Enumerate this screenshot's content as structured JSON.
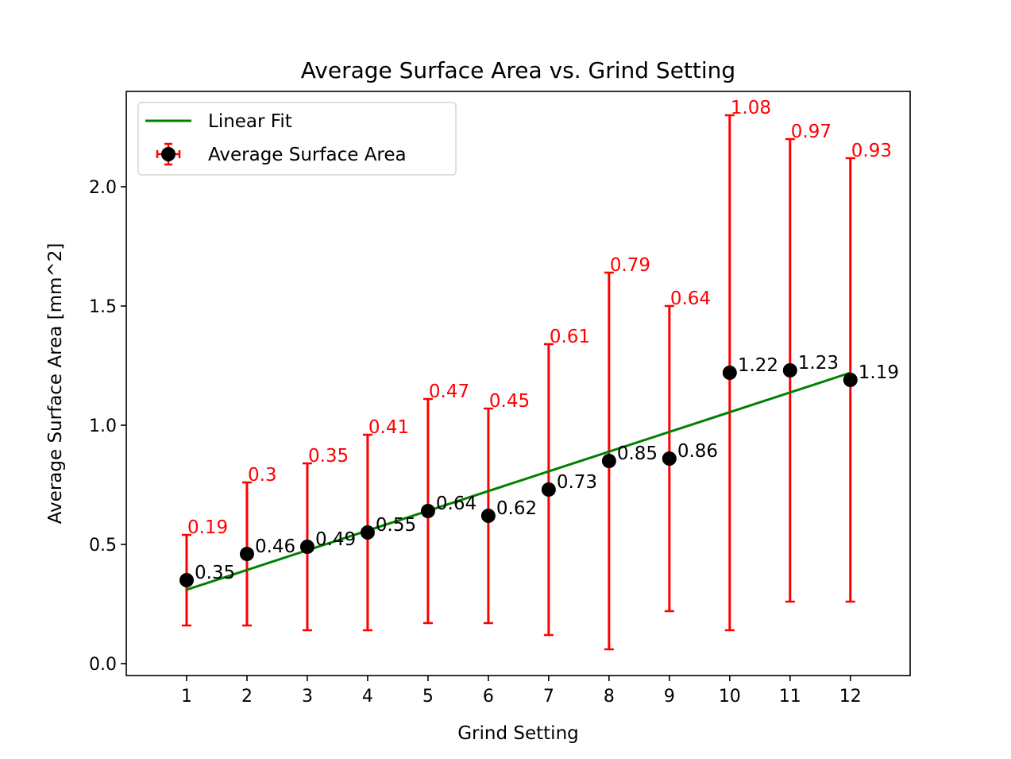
{
  "chart_data": {
    "type": "scatter",
    "title": "Average Surface Area vs. Grind Setting",
    "xlabel": "Grind Setting",
    "ylabel": "Average Surface Area [mm^2]",
    "xlim": [
      0,
      12.99
    ],
    "ylim": [
      -0.05,
      2.4
    ],
    "x_ticks": [
      1,
      2,
      3,
      4,
      5,
      6,
      7,
      8,
      9,
      10,
      11,
      12
    ],
    "y_ticks": [
      0.0,
      0.5,
      1.0,
      1.5,
      2.0
    ],
    "y_tick_labels": [
      "0.0",
      "0.5",
      "1.0",
      "1.5",
      "2.0"
    ],
    "grid": false,
    "legend_position": "top-left",
    "colors": {
      "points": "#000000",
      "errorbars": "#ff0000",
      "fit": "#008000"
    },
    "series": [
      {
        "name": "Average Surface Area",
        "kind": "errorbar",
        "x": [
          1,
          2,
          3,
          4,
          5,
          6,
          7,
          8,
          9,
          10,
          11,
          12
        ],
        "y": [
          0.35,
          0.46,
          0.49,
          0.55,
          0.64,
          0.62,
          0.73,
          0.85,
          0.86,
          1.22,
          1.23,
          1.19
        ],
        "y_labels": [
          "0.35",
          "0.46",
          "0.49",
          "0.55",
          "0.64",
          "0.62",
          "0.73",
          "0.85",
          "0.86",
          "1.22",
          "1.23",
          "1.19"
        ],
        "err_low": [
          0.16,
          0.16,
          0.14,
          0.14,
          0.17,
          0.17,
          0.12,
          0.06,
          0.22,
          0.14,
          0.26,
          0.26
        ],
        "err_high": [
          0.54,
          0.76,
          0.84,
          0.96,
          1.11,
          1.07,
          1.34,
          1.64,
          1.5,
          2.3,
          2.2,
          2.12
        ],
        "err_labels": [
          "0.19",
          "0.3",
          "0.35",
          "0.41",
          "0.47",
          "0.45",
          "0.61",
          "0.79",
          "0.64",
          "1.08",
          "0.97",
          "0.93"
        ]
      },
      {
        "name": "Linear Fit",
        "kind": "line",
        "x": [
          1,
          12
        ],
        "y": [
          0.31,
          1.22
        ]
      }
    ]
  }
}
